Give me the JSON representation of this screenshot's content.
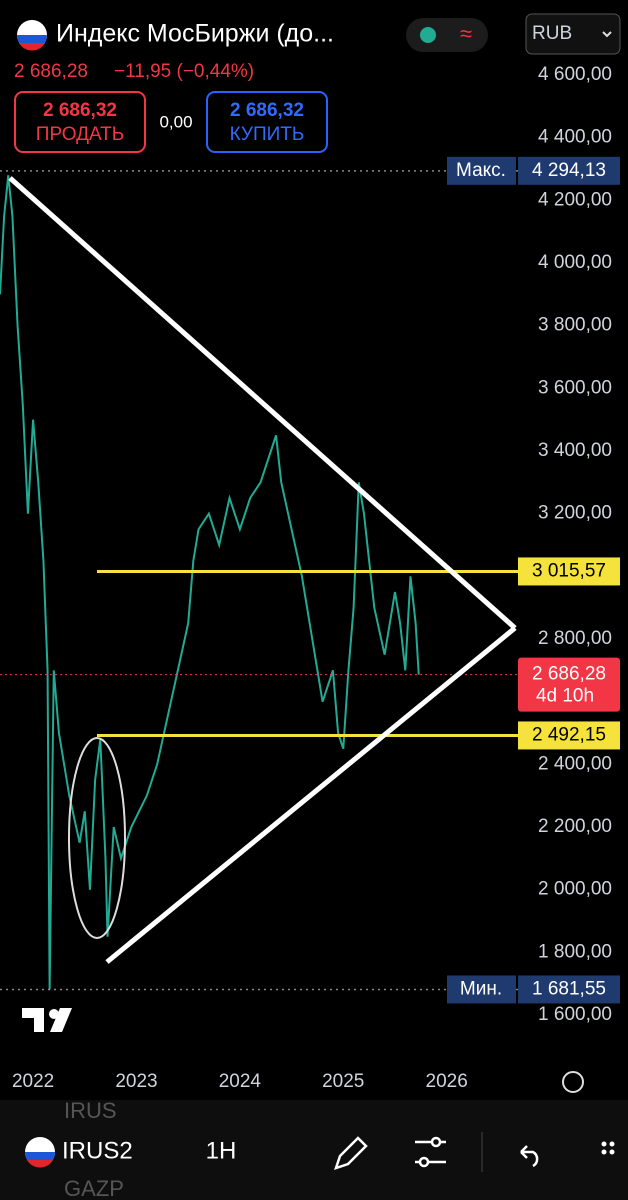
{
  "header": {
    "symbol_title": "Индекс МосБиржи (до...",
    "price": "2 686,28",
    "change": "−11,95 (−0,44%)",
    "sell_price": "2 686,32",
    "sell_label": "ПРОДАТЬ",
    "spread": "0,00",
    "buy_price": "2 686,32",
    "buy_label": "КУПИТЬ",
    "currency": "RUB"
  },
  "chart_data": {
    "type": "line",
    "color": "#22ab94",
    "grid": false,
    "x": [
      2021.68,
      2021.72,
      2021.76,
      2021.8,
      2021.85,
      2021.9,
      2021.95,
      2022.0,
      2022.05,
      2022.1,
      2022.14,
      2022.16,
      2022.2,
      2022.25,
      2022.35,
      2022.45,
      2022.5,
      2022.55,
      2022.6,
      2022.65,
      2022.7,
      2022.72,
      2022.78,
      2022.85,
      2022.95,
      2023.1,
      2023.2,
      2023.3,
      2023.4,
      2023.5,
      2023.55,
      2023.6,
      2023.7,
      2023.8,
      2023.9,
      2024.0,
      2024.1,
      2024.2,
      2024.3,
      2024.35,
      2024.4,
      2024.5,
      2024.6,
      2024.7,
      2024.8,
      2024.9,
      2024.95,
      2025.0,
      2025.05,
      2025.1,
      2025.15,
      2025.2,
      2025.3,
      2025.4,
      2025.5,
      2025.55,
      2025.6,
      2025.65,
      2025.7,
      2025.73
    ],
    "values": [
      3900,
      4150,
      4280,
      4150,
      3800,
      3550,
      3200,
      3500,
      3300,
      3050,
      2700,
      1681.55,
      2700,
      2500,
      2300,
      2150,
      2250,
      2000,
      2350,
      2480,
      2100,
      1850,
      2200,
      2100,
      2200,
      2300,
      2400,
      2550,
      2700,
      2850,
      3050,
      3150,
      3200,
      3100,
      3250,
      3150,
      3250,
      3300,
      3400,
      3450,
      3300,
      3150,
      3000,
      2800,
      2600,
      2700,
      2500,
      2450,
      2700,
      2900,
      3300,
      3200,
      2900,
      2750,
      2950,
      2850,
      2700,
      3000,
      2850,
      2686.28
    ],
    "xlim": [
      2021.68,
      2026.69
    ],
    "xticks": [
      2022,
      2023,
      2024,
      2025,
      2026
    ],
    "ylim": [
      1600,
      4600
    ],
    "yticks": [
      {
        "value": 1600,
        "label": "1 600,00"
      },
      {
        "value": 1800,
        "label": "1 800,00"
      },
      {
        "value": 2000,
        "label": "2 000,00"
      },
      {
        "value": 2200,
        "label": "2 200,00"
      },
      {
        "value": 2400,
        "label": "2 400,00"
      },
      {
        "value": 2800,
        "label": "2 800,00"
      },
      {
        "value": 3200,
        "label": "3 200,00"
      },
      {
        "value": 3400,
        "label": "3 400,00"
      },
      {
        "value": 3600,
        "label": "3 600,00"
      },
      {
        "value": 3800,
        "label": "3 800,00"
      },
      {
        "value": 4000,
        "label": "4 000,00"
      },
      {
        "value": 4200,
        "label": "4 200,00"
      },
      {
        "value": 4400,
        "label": "4 400,00"
      },
      {
        "value": 4600,
        "label": "4 600,00"
      }
    ],
    "price_lines": [
      {
        "name": "Макс.",
        "value": 4294.13,
        "label": "4 294,13",
        "color": "#1e3a6e"
      },
      {
        "name": "Мин.",
        "value": 1681.55,
        "label": "1 681,55",
        "color": "#1e3a6e"
      },
      {
        "value": 3015.57,
        "label": "3 015,57",
        "color": "#f5e33b"
      },
      {
        "value": 2492.15,
        "label": "2 492,15",
        "color": "#f5e33b"
      }
    ],
    "last_price": {
      "value": 2686.28,
      "label": "2 686,28",
      "countdown": "4d 10h",
      "color": "#f23645"
    }
  },
  "footer": {
    "ghost_above": "IRUS",
    "symbol": "IRUS2",
    "interval": "1H",
    "ghost_below": "GAZP"
  }
}
